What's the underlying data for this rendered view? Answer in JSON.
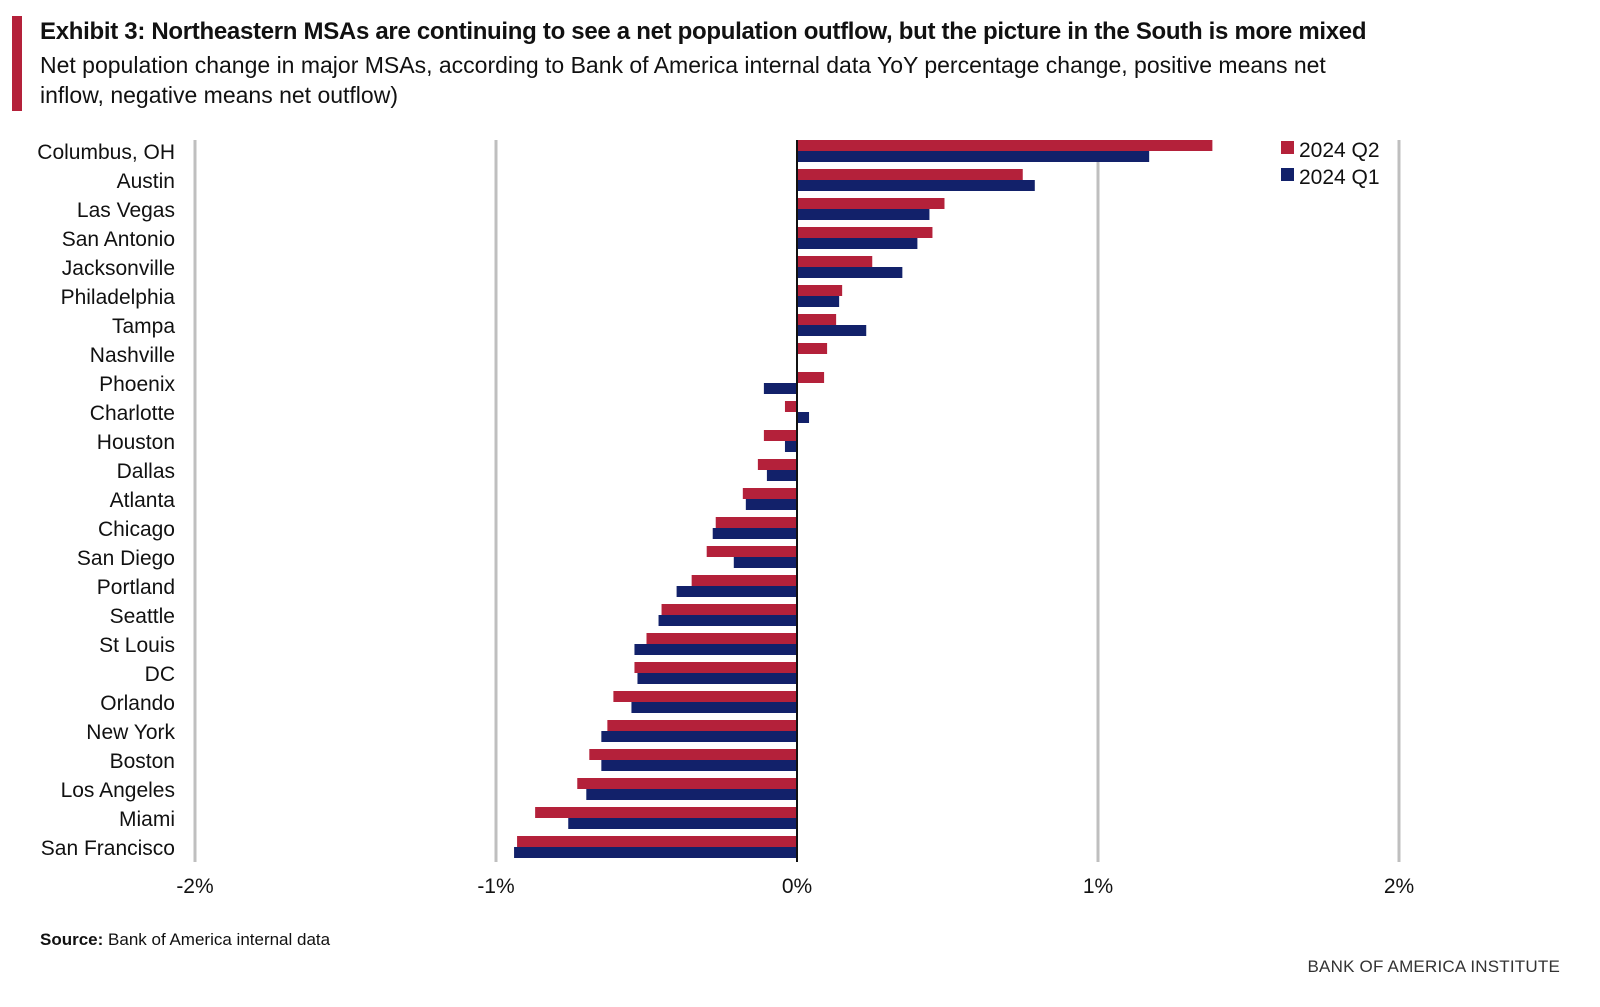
{
  "header": {
    "title": "Exhibit 3: Northeastern MSAs are continuing to see a net population outflow, but the picture in the South is more mixed",
    "subtitle": "Net population change in major MSAs, according to Bank of America internal data YoY percentage change, positive means net inflow, negative means net outflow)"
  },
  "footer": {
    "source_label": "Source:",
    "source_text": "Bank of America internal data",
    "brand": "BANK OF AMERICA INSTITUTE"
  },
  "colors": {
    "accent": "#b4213a",
    "q2": "#b4213a",
    "q1": "#12216a",
    "grid": "#bfbfbf"
  },
  "chart_data": {
    "type": "bar",
    "orientation": "horizontal",
    "categories": [
      "Columbus, OH",
      "Austin",
      "Las Vegas",
      "San Antonio",
      "Jacksonville",
      "Philadelphia",
      "Tampa",
      "Nashville",
      "Phoenix",
      "Charlotte",
      "Houston",
      "Dallas",
      "Atlanta",
      "Chicago",
      "San Diego",
      "Portland",
      "Seattle",
      "St Louis",
      "DC",
      "Orlando",
      "New York",
      "Boston",
      "Los Angeles",
      "Miami",
      "San Francisco"
    ],
    "series": [
      {
        "name": "2024 Q2",
        "color": "#b4213a",
        "values": [
          1.38,
          0.75,
          0.49,
          0.45,
          0.25,
          0.15,
          0.13,
          0.1,
          0.09,
          -0.04,
          -0.11,
          -0.13,
          -0.18,
          -0.27,
          -0.3,
          -0.35,
          -0.45,
          -0.5,
          -0.54,
          -0.61,
          -0.63,
          -0.69,
          -0.73,
          -0.87,
          -0.93
        ]
      },
      {
        "name": "2024 Q1",
        "color": "#12216a",
        "values": [
          1.17,
          0.79,
          0.44,
          0.4,
          0.35,
          0.14,
          0.23,
          0.0,
          -0.11,
          0.04,
          -0.04,
          -0.1,
          -0.17,
          -0.28,
          -0.21,
          -0.4,
          -0.46,
          -0.54,
          -0.53,
          -0.55,
          -0.65,
          -0.65,
          -0.7,
          -0.76,
          -0.94
        ]
      }
    ],
    "xlim": [
      -2,
      2
    ],
    "xticks": [
      "-2%",
      "-1%",
      "0%",
      "1%",
      "2%"
    ],
    "xtick_values": [
      -2,
      -1,
      0,
      1,
      2
    ],
    "x_unit": "%",
    "grid": "vertical",
    "legend_position": "top-right"
  }
}
